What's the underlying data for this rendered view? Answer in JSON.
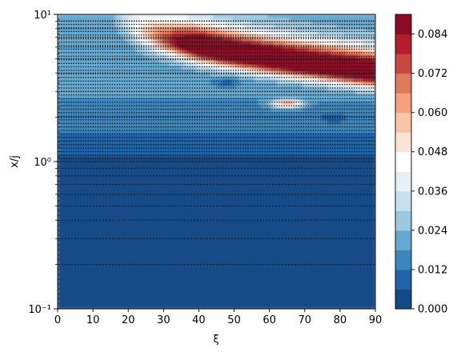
{
  "chart_data": {
    "type": "heatmap",
    "xlabel": "ξ",
    "ylabel": "x/j",
    "xlim": [
      0,
      90
    ],
    "ylim": [
      0.1,
      10
    ],
    "yscale": "log",
    "x_ticks": [
      0,
      10,
      20,
      30,
      40,
      50,
      60,
      70,
      80,
      90
    ],
    "x_tick_labels": [
      "0",
      "10",
      "20",
      "30",
      "40",
      "50",
      "60",
      "70",
      "80",
      "90"
    ],
    "y_ticks": [
      0.1,
      1,
      10
    ],
    "y_tick_labels": [
      "10⁻¹",
      "10⁰",
      "10¹"
    ],
    "colorbar": {
      "vmin": 0.0,
      "vmax": 0.09,
      "level_step": 0.006,
      "ticks": [
        0.0,
        0.012,
        0.024,
        0.036,
        0.048,
        0.06,
        0.072,
        0.084
      ],
      "tick_labels": [
        "0.000",
        "0.012",
        "0.024",
        "0.036",
        "0.048",
        "0.060",
        "0.072",
        "0.084"
      ],
      "colors": [
        "#134b87",
        "#1f63a8",
        "#3a87bd",
        "#65a8d0",
        "#9cc8e1",
        "#c6e0ee",
        "#e6f0f5",
        "#ffffff",
        "#fbe4d6",
        "#f9c4a8",
        "#f3a17f",
        "#e07a5f",
        "#c94741",
        "#b51d2e",
        "#8a0b25"
      ],
      "colormap": "RdBu_r"
    },
    "features": [
      {
        "name": "ridge",
        "xi_start": 20,
        "xi_end": 90,
        "xj_start": 9,
        "xj_end": 4.0,
        "peak": 0.088
      },
      {
        "name": "hotspot",
        "xi": 65,
        "xj": 2.5,
        "peak": 0.07
      }
    ],
    "sample_points": "dense grid of black dots across the field"
  }
}
